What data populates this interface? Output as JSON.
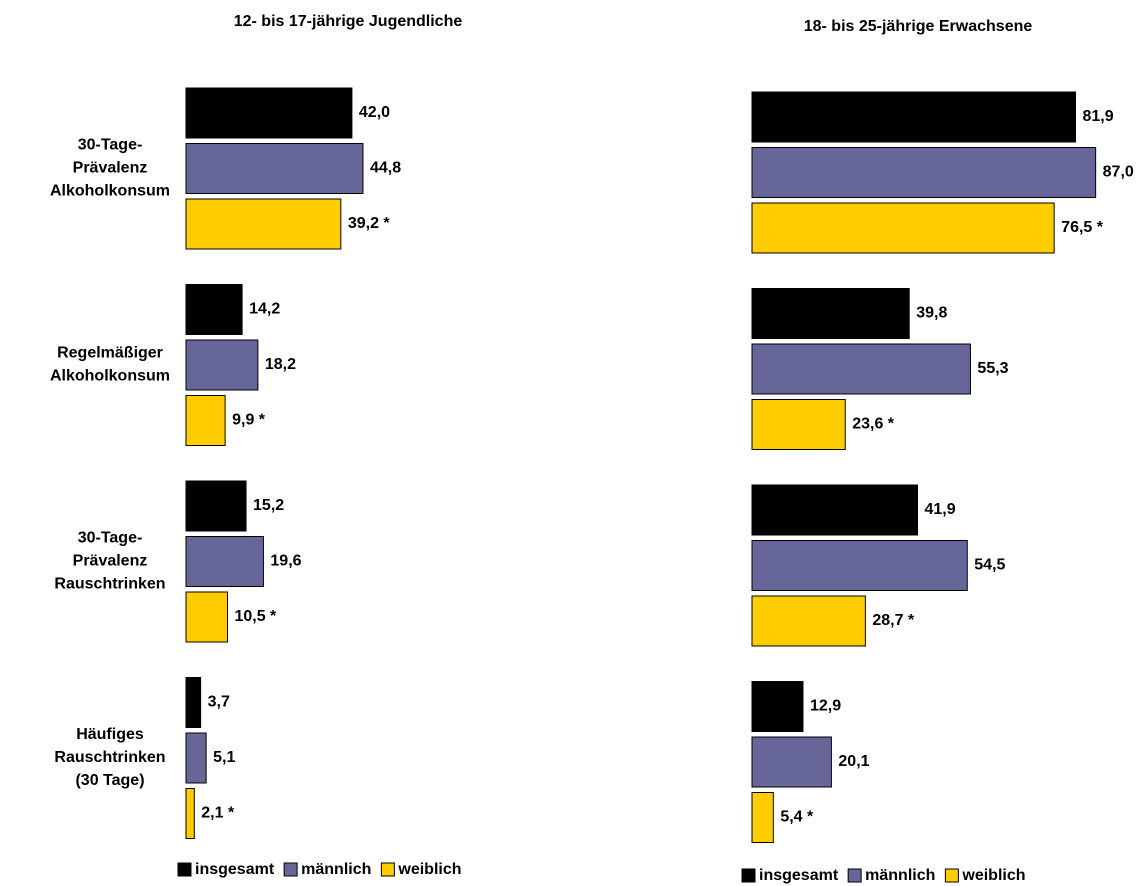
{
  "chart_data": [
    {
      "type": "bar",
      "orientation": "horizontal",
      "title": "12- bis 17-jährige Jugendliche",
      "categories": [
        [
          "30-Tage-",
          "Prävalenz",
          "Alkoholkonsum"
        ],
        [
          "Regelmäßiger",
          "Alkoholkonsum"
        ],
        [
          "30-Tage-",
          "Prävalenz",
          "Rauschtrinken"
        ],
        [
          "Häufiges",
          "Rauschtrinken",
          "(30 Tage)"
        ]
      ],
      "series": [
        {
          "name": "insgesamt",
          "color": "#000000",
          "values": [
            42.0,
            14.2,
            15.2,
            3.7
          ],
          "value_labels": [
            "42,0",
            "14,2",
            "15,2",
            "3,7"
          ]
        },
        {
          "name": "männlich",
          "color": "#666699",
          "values": [
            44.8,
            18.2,
            19.6,
            5.1
          ],
          "value_labels": [
            "44,8",
            "18,2",
            "19,6",
            "5,1"
          ]
        },
        {
          "name": "weiblich",
          "color": "#FFCC00",
          "values": [
            39.2,
            9.9,
            10.5,
            2.1
          ],
          "value_labels": [
            "39,2 *",
            "9,9 *",
            "10,5 *",
            "2,1 *"
          ]
        }
      ],
      "legend": "bottom"
    },
    {
      "type": "bar",
      "orientation": "horizontal",
      "title": "18- bis 25-jährige Erwachsene",
      "categories": [
        null,
        null,
        null,
        null
      ],
      "series": [
        {
          "name": "insgesamt",
          "color": "#000000",
          "values": [
            81.9,
            39.8,
            41.9,
            12.9
          ],
          "value_labels": [
            "81,9",
            "39,8",
            "41,9",
            "12,9"
          ]
        },
        {
          "name": "männlich",
          "color": "#666699",
          "values": [
            87.0,
            55.3,
            54.5,
            20.1
          ],
          "value_labels": [
            "87,0",
            "55,3",
            "54,5",
            "20,1"
          ]
        },
        {
          "name": "weiblich",
          "color": "#FFCC00",
          "values": [
            76.5,
            23.6,
            28.7,
            5.4
          ],
          "value_labels": [
            "76,5 *",
            "23,6 *",
            "28,7 *",
            "5,4 *"
          ]
        }
      ],
      "legend": "bottom"
    }
  ]
}
